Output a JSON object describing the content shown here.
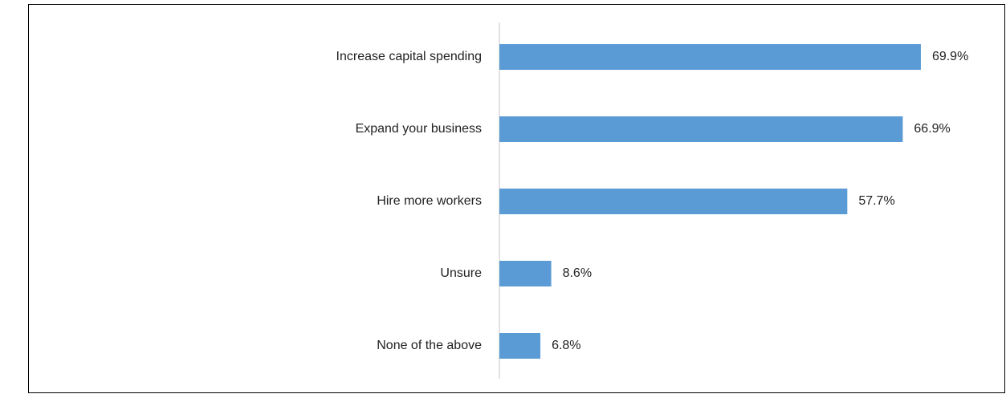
{
  "chart_data": {
    "type": "hbar",
    "categories": [
      "Increase capital spending",
      "Expand your business",
      "Hire more workers",
      "Unsure",
      "None of the above"
    ],
    "values": [
      69.9,
      66.9,
      57.7,
      8.6,
      6.8
    ],
    "value_labels": [
      "69.9%",
      "66.9%",
      "57.7%",
      "8.6%",
      "6.8%"
    ],
    "color": "#5b9bd5"
  }
}
